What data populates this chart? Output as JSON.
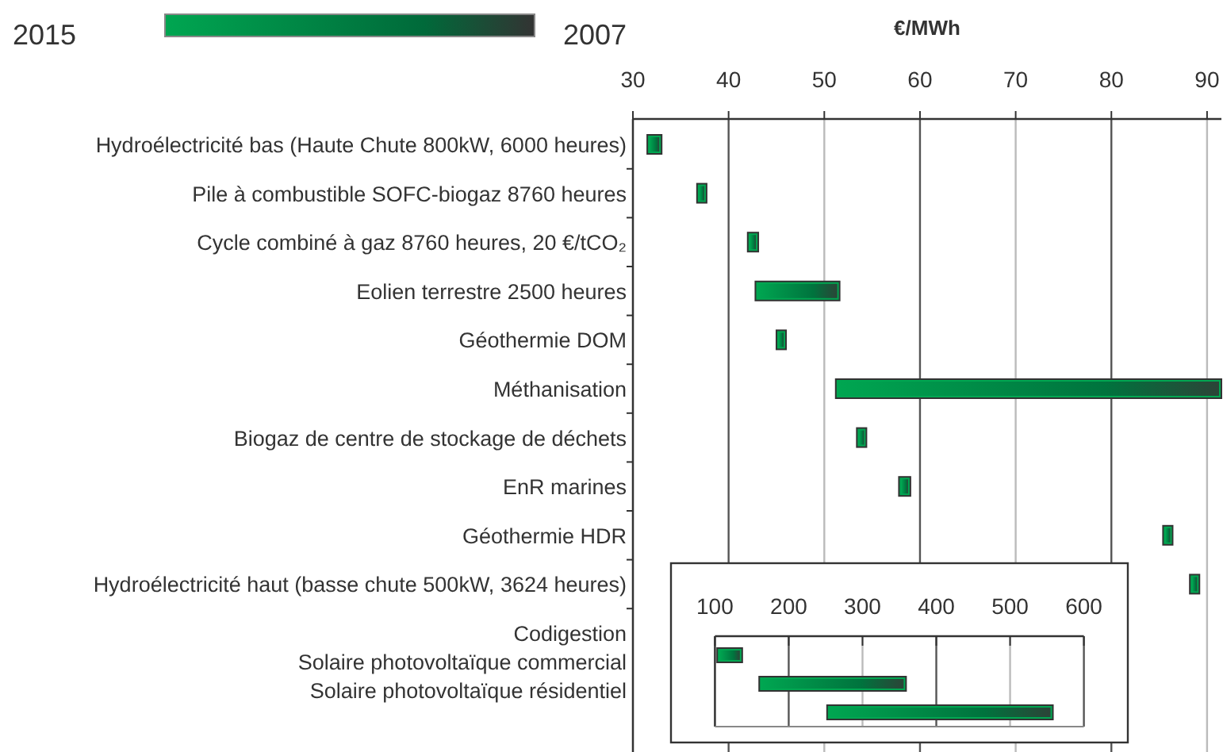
{
  "chart_data": [
    {
      "type": "bar",
      "orientation": "horizontal",
      "xlabel": "€/MWh",
      "annotations": [
        "2015",
        "2007"
      ],
      "categories": [
        "Hydroélectricité bas (Haute Chute 800kW, 6000 heures)",
        "Pile à combustible SOFC-biogaz 8760 heures",
        "Cycle combiné à gaz 8760 heures, 20 €/tCO₂",
        "Eolien terrestre 2500 heures",
        "Géothermie DOM",
        "Méthanisation",
        "Biogaz de centre de stockage de déchets",
        "EnR marines",
        "Géothermie HDR",
        "Hydroélectricité haut (basse chute 500kW, 3624 heures)"
      ],
      "series": [
        {
          "color": "#00a651",
          "base": [
            31.5,
            36.7,
            42,
            42.8,
            45,
            51.2,
            53.4,
            57.8,
            85.4,
            88.2
          ],
          "values": [
            1.5,
            1.0,
            1.1,
            8.8,
            1.0,
            40.3,
            1.0,
            1.2,
            1.0,
            1.0
          ]
        }
      ],
      "xlim": [
        30,
        91.5
      ],
      "xticks": [
        30,
        40,
        50,
        60,
        70,
        80,
        90
      ],
      "grid": "x"
    },
    {
      "type": "bar",
      "orientation": "horizontal",
      "categories": [
        "Codigestion",
        "Solaire photovoltaïque commercial",
        "Solaire photovoltaïque résidentiel"
      ],
      "series": [
        {
          "color": "#00a651",
          "base": [
            103,
            160,
            252
          ],
          "values": [
            34,
            199,
            306
          ]
        }
      ],
      "xlim": [
        100,
        600
      ],
      "xticks": [
        100,
        200,
        300,
        400,
        500,
        600
      ],
      "grid": "x"
    }
  ]
}
